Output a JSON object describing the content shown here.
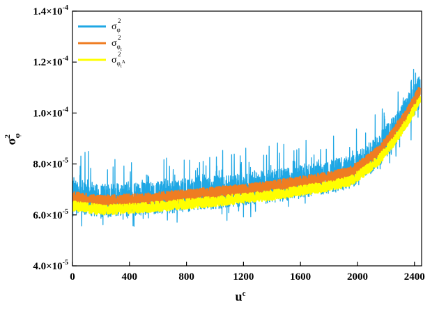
{
  "chart_data": {
    "type": "line",
    "title": "",
    "xlabel": {
      "base": "u",
      "sup": "c"
    },
    "ylabel": {
      "base": "σ",
      "sup": "2",
      "sub": "φ"
    },
    "xlim": [
      0,
      2450
    ],
    "ylim": [
      4e-05,
      0.00014
    ],
    "xticks": [
      0,
      400,
      800,
      1200,
      1600,
      2000,
      2400
    ],
    "xtick_labels": [
      "0",
      "400",
      "800",
      "1200",
      "1600",
      "2000",
      "2400"
    ],
    "yticks": [
      4e-05,
      6e-05,
      8e-05,
      0.0001,
      0.00012,
      0.00014
    ],
    "ytick_labels": [
      {
        "mant": "4.0×10",
        "exp": "-5"
      },
      {
        "mant": "6.0×10",
        "exp": "-5"
      },
      {
        "mant": "8.0×10",
        "exp": "-5"
      },
      {
        "mant": "1.0×10",
        "exp": "-4"
      },
      {
        "mant": "1.2×10",
        "exp": "-4"
      },
      {
        "mant": "1.4×10",
        "exp": "-4"
      }
    ],
    "grid": false,
    "legend_position": "top-left",
    "trend": {
      "x": [
        0,
        200,
        400,
        600,
        800,
        1000,
        1200,
        1400,
        1600,
        1800,
        1950,
        2050,
        2150,
        2250,
        2350,
        2450
      ],
      "y": [
        6.7e-05,
        6.55e-05,
        6.6e-05,
        6.68e-05,
        6.78e-05,
        6.88e-05,
        7e-05,
        7.12e-05,
        7.3e-05,
        7.48e-05,
        7.68e-05,
        8.05e-05,
        8.5e-05,
        9.2e-05,
        0.0001,
        0.00011
      ]
    },
    "series": [
      {
        "name": "σ_φ^2",
        "label": {
          "base": "σ",
          "sup": "2",
          "sub": "φ"
        },
        "color": "#1fa7e4",
        "offset": 0.0,
        "noise": 6.5e-06,
        "spike": 1e-05,
        "width": 1.3,
        "seed": 7
      },
      {
        "name": "σ_φt^2",
        "label": {
          "base": "σ",
          "sup": "2",
          "sub": "φ",
          "subsub": "t"
        },
        "color": "#ef7d22",
        "offset": 0.0,
        "noise": 2.2e-06,
        "spike": 0.0,
        "width": 2.2,
        "seed": 19
      },
      {
        "name": "σ_φtA^2",
        "label": {
          "base": "σ",
          "sup": "2",
          "sub": "φ",
          "subsub": "t",
          "subsup": "A"
        },
        "color": "#ffff00",
        "offset": -3.5e-06,
        "noise": 2e-06,
        "spike": 0.0,
        "width": 2.2,
        "seed": 31
      }
    ]
  }
}
